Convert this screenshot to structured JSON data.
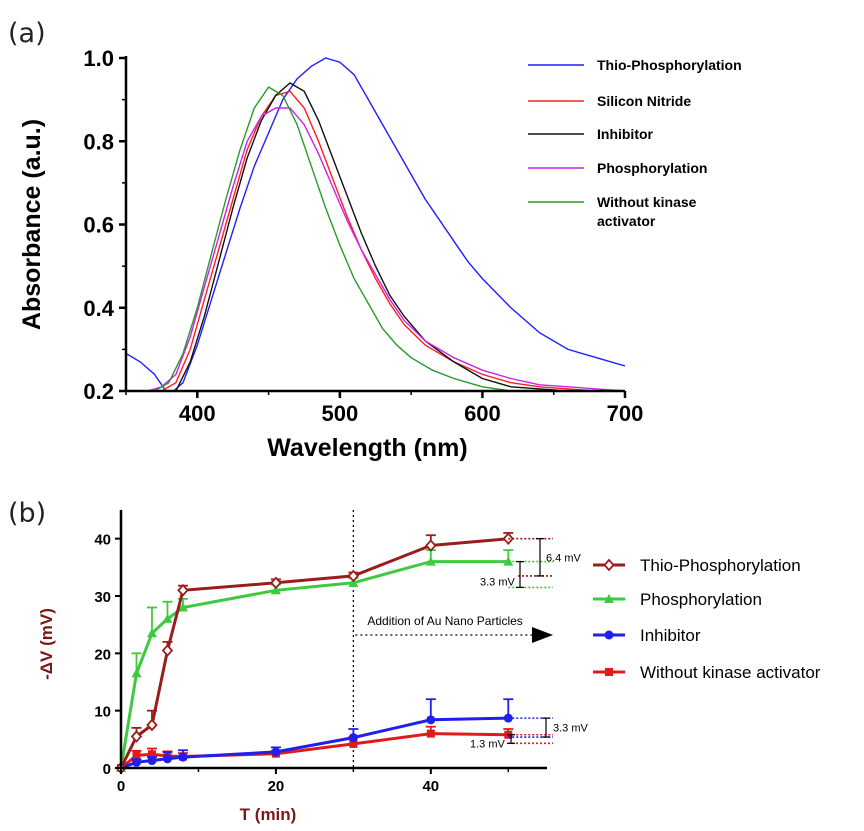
{
  "chart_data": [
    {
      "panel_label": "(a)",
      "type": "line",
      "title": "",
      "xlabel": "Wavelength (nm)",
      "ylabel": "Absorbance (a.u.)",
      "xlim": [
        350,
        700
      ],
      "ylim": [
        0.2,
        1.0
      ],
      "x_ticks": [
        "400",
        "500",
        "600",
        "700"
      ],
      "y_ticks": [
        "0.2",
        "0.4",
        "0.6",
        "0.8",
        "1.0"
      ],
      "legend_position": "top-right",
      "series": [
        {
          "name": "Thio-Phosphorylation",
          "color": "#1f1fff",
          "x": [
            350,
            360,
            370,
            380,
            390,
            400,
            410,
            420,
            430,
            440,
            450,
            460,
            470,
            480,
            490,
            500,
            510,
            520,
            530,
            540,
            550,
            560,
            570,
            580,
            590,
            600,
            620,
            640,
            660,
            680,
            700
          ],
          "y": [
            0.29,
            0.27,
            0.24,
            0.19,
            0.22,
            0.31,
            0.42,
            0.53,
            0.64,
            0.74,
            0.82,
            0.9,
            0.95,
            0.98,
            1.0,
            0.99,
            0.96,
            0.9,
            0.84,
            0.78,
            0.72,
            0.66,
            0.61,
            0.56,
            0.51,
            0.47,
            0.4,
            0.34,
            0.3,
            0.28,
            0.26
          ]
        },
        {
          "name": "Silicon Nitride",
          "color": "#ff2020",
          "x": [
            375,
            385,
            395,
            405,
            415,
            425,
            435,
            445,
            455,
            465,
            475,
            485,
            495,
            505,
            515,
            525,
            535,
            545,
            560,
            580,
            600,
            620,
            640,
            660,
            680,
            700
          ],
          "y": [
            0.2,
            0.22,
            0.3,
            0.42,
            0.54,
            0.66,
            0.78,
            0.86,
            0.91,
            0.92,
            0.88,
            0.8,
            0.71,
            0.62,
            0.54,
            0.47,
            0.41,
            0.36,
            0.31,
            0.27,
            0.24,
            0.22,
            0.21,
            0.205,
            0.2,
            0.2
          ]
        },
        {
          "name": "Inhibitor",
          "color": "#111111",
          "x": [
            385,
            395,
            405,
            415,
            425,
            435,
            445,
            455,
            465,
            475,
            485,
            495,
            505,
            515,
            525,
            535,
            545,
            560,
            580,
            600,
            620,
            640,
            660,
            680
          ],
          "y": [
            0.2,
            0.27,
            0.38,
            0.51,
            0.64,
            0.76,
            0.85,
            0.91,
            0.94,
            0.92,
            0.85,
            0.76,
            0.67,
            0.58,
            0.5,
            0.43,
            0.38,
            0.32,
            0.27,
            0.23,
            0.21,
            0.205,
            0.2,
            0.2
          ]
        },
        {
          "name": "Phosphorylation",
          "color": "#cc22ee",
          "x": [
            365,
            375,
            385,
            395,
            405,
            415,
            425,
            435,
            445,
            455,
            465,
            475,
            485,
            495,
            505,
            515,
            525,
            535,
            545,
            560,
            580,
            600,
            620,
            640,
            660,
            680,
            700
          ],
          "y": [
            0.2,
            0.21,
            0.24,
            0.33,
            0.45,
            0.57,
            0.69,
            0.8,
            0.86,
            0.88,
            0.88,
            0.84,
            0.77,
            0.69,
            0.61,
            0.54,
            0.48,
            0.42,
            0.37,
            0.32,
            0.28,
            0.25,
            0.23,
            0.215,
            0.21,
            0.205,
            0.2
          ]
        },
        {
          "name": "Without kinase activator",
          "color": "#2a9a2a",
          "x": [
            370,
            380,
            390,
            400,
            410,
            420,
            430,
            440,
            450,
            460,
            470,
            480,
            490,
            500,
            510,
            520,
            530,
            540,
            550,
            565,
            580,
            600,
            620,
            640
          ],
          "y": [
            0.2,
            0.22,
            0.29,
            0.4,
            0.53,
            0.66,
            0.78,
            0.88,
            0.93,
            0.91,
            0.84,
            0.74,
            0.64,
            0.55,
            0.47,
            0.41,
            0.35,
            0.31,
            0.28,
            0.25,
            0.23,
            0.21,
            0.2,
            0.2
          ]
        }
      ]
    },
    {
      "panel_label": "(b)",
      "type": "line",
      "title": "",
      "xlabel": "T (min)",
      "ylabel": "-ΔV (mV)",
      "xlim": [
        0,
        55
      ],
      "ylim": [
        0,
        45
      ],
      "x_ticks": [
        "0",
        "20",
        "40"
      ],
      "y_ticks": [
        "0",
        "10",
        "20",
        "30",
        "40"
      ],
      "legend_position": "right",
      "series": [
        {
          "name": "Thio-Phosphorylation",
          "color": "#9b1c1c",
          "marker": "diamond-open",
          "x": [
            0,
            2,
            4,
            6,
            8,
            20,
            30,
            40,
            50
          ],
          "y": [
            0,
            5.5,
            7.5,
            20.5,
            31,
            32.3,
            33.5,
            38.8,
            40
          ],
          "err": [
            0,
            1.5,
            2.5,
            1.5,
            0.8,
            0.6,
            0.6,
            1.8,
            1.0
          ]
        },
        {
          "name": "Phosphorylation",
          "color": "#3ec93e",
          "marker": "triangle",
          "x": [
            0,
            2,
            4,
            6,
            8,
            20,
            30,
            40,
            50
          ],
          "y": [
            0,
            16.5,
            23.5,
            26,
            28,
            31,
            32.3,
            36,
            36
          ],
          "err": [
            0,
            3.5,
            4.5,
            3,
            1.5,
            1,
            0.8,
            2,
            2
          ]
        },
        {
          "name": "Inhibitor",
          "color": "#1f1fee",
          "marker": "circle",
          "x": [
            0,
            2,
            4,
            6,
            8,
            20,
            30,
            40,
            50
          ],
          "y": [
            0,
            1,
            1.3,
            1.6,
            1.9,
            2.8,
            5.3,
            8.4,
            8.7
          ],
          "err": [
            0,
            0.5,
            0.6,
            1.2,
            1.2,
            0.8,
            1.5,
            3.6,
            3.3
          ]
        },
        {
          "name": "Without kinase activator",
          "color": "#e01b1b",
          "marker": "square",
          "x": [
            0,
            2,
            4,
            6,
            8,
            20,
            30,
            40,
            50
          ],
          "y": [
            0,
            2.2,
            2.4,
            2.1,
            2.0,
            2.5,
            4.2,
            6.0,
            5.8
          ],
          "err": [
            0,
            0.8,
            1.0,
            0.8,
            0.6,
            0.5,
            1.2,
            1.2,
            1.0
          ]
        }
      ],
      "annotations": {
        "addition_label": "Addition of Au Nano Particles",
        "addition_time": 30,
        "diff_top_upper": "6.4 mV",
        "diff_top_lower": "3.3 mV",
        "diff_bottom_upper": "3.3 mV",
        "diff_bottom_lower": "1.3 mV"
      }
    }
  ]
}
